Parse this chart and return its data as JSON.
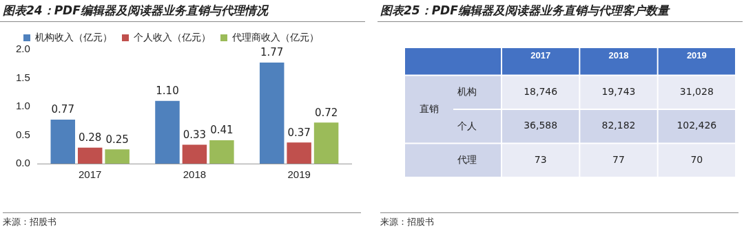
{
  "chart_data": [
    {
      "type": "bar",
      "title": "图表24：PDF编辑器及阅读器业务直销与代理情况",
      "categories": [
        "2017",
        "2018",
        "2019"
      ],
      "series": [
        {
          "name": "机构收入（亿元）",
          "color": "#4f81bd",
          "values": [
            0.77,
            1.1,
            1.77
          ],
          "value_labels": [
            "0.77",
            "1.10",
            "1.77"
          ]
        },
        {
          "name": "个人收入（亿元）",
          "color": "#c0504d",
          "values": [
            0.28,
            0.33,
            0.37
          ],
          "value_labels": [
            "0.28",
            "0.33",
            "0.37"
          ]
        },
        {
          "name": "代理商收入（亿元）",
          "color": "#9bbb59",
          "values": [
            0.25,
            0.41,
            0.72
          ],
          "value_labels": [
            "0.25",
            "0.41",
            "0.72"
          ]
        }
      ],
      "ylim": [
        0,
        2
      ],
      "yticks": [
        {
          "value": 0,
          "label": "0.0"
        },
        {
          "value": 0.5,
          "label": "0.5"
        },
        {
          "value": 1,
          "label": "1.0"
        },
        {
          "value": 1.5,
          "label": "1.5"
        },
        {
          "value": 2,
          "label": "2.0"
        }
      ],
      "grid": false,
      "legend": "top left",
      "annotations": [
        "来源：招股书"
      ]
    },
    {
      "type": "heatmap",
      "title": "图表25：PDF编辑器及阅读器业务直销与代理客户数量",
      "categories": [
        "2017",
        "2018",
        "2019"
      ],
      "y_categories": [
        "机构",
        "个人",
        "代理"
      ],
      "cells": [
        [
          18746,
          19743,
          31028
        ],
        [
          36588,
          82182,
          102426
        ],
        [
          73,
          77,
          70
        ]
      ],
      "cell_labels": [
        [
          "18,746",
          "19,743",
          "31,028"
        ],
        [
          "36,588",
          "82,182",
          "102,426"
        ],
        [
          "73",
          "77",
          "70"
        ]
      ],
      "annotations": [
        "直销",
        "来源：招股书"
      ]
    }
  ]
}
